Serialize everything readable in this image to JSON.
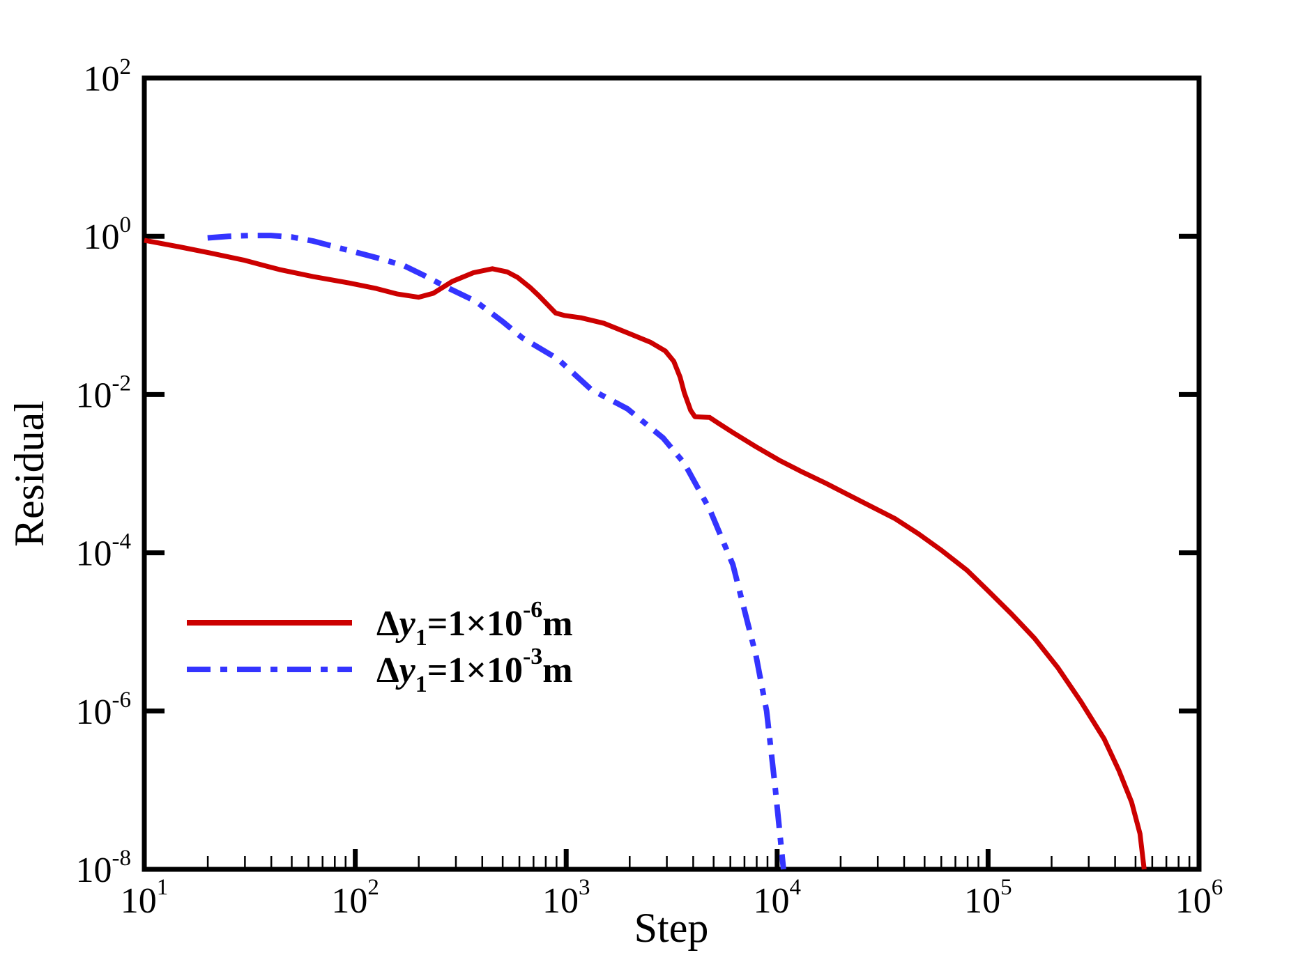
{
  "figure": {
    "background": "#ffffff"
  },
  "chart_data": {
    "type": "line",
    "title": "",
    "xlabel": "Step",
    "ylabel": "Residual",
    "x_scale": "log10",
    "y_scale": "log10",
    "xlim": [
      10,
      1000000
    ],
    "ylim": [
      1e-08,
      100
    ],
    "grid": false,
    "legend_position": "inside-lower-left",
    "x_axis": {
      "tick_base": "10",
      "tick_exponents": [
        "1",
        "2",
        "3",
        "4",
        "5",
        "6"
      ],
      "tick_positions_log": [
        1,
        2,
        3,
        4,
        5,
        6
      ],
      "minor_ticks": "log decades 2-9"
    },
    "y_axis": {
      "tick_base": "10",
      "tick_exponents": [
        "2",
        "0",
        "-2",
        "-4",
        "-6",
        "-8"
      ],
      "tick_positions_log": [
        2,
        0,
        -2,
        -4,
        -6,
        -8
      ]
    },
    "series": [
      {
        "name": "dy1 = 1e-6 m",
        "color": "#cc0000",
        "line_style": "solid",
        "line_width": 7,
        "points_log10_step_residual": [
          [
            1.0,
            -0.05
          ],
          [
            1.16,
            -0.13
          ],
          [
            1.31,
            -0.21
          ],
          [
            1.47,
            -0.3
          ],
          [
            1.64,
            -0.42
          ],
          [
            1.8,
            -0.51
          ],
          [
            1.97,
            -0.59
          ],
          [
            2.1,
            -0.66
          ],
          [
            2.2,
            -0.73
          ],
          [
            2.3,
            -0.77
          ],
          [
            2.37,
            -0.72
          ],
          [
            2.46,
            -0.57
          ],
          [
            2.56,
            -0.46
          ],
          [
            2.65,
            -0.41
          ],
          [
            2.72,
            -0.45
          ],
          [
            2.77,
            -0.52
          ],
          [
            2.83,
            -0.65
          ],
          [
            2.87,
            -0.75
          ],
          [
            2.91,
            -0.86
          ],
          [
            2.95,
            -0.97
          ],
          [
            2.99,
            -1.0
          ],
          [
            3.07,
            -1.03
          ],
          [
            3.18,
            -1.1
          ],
          [
            3.29,
            -1.22
          ],
          [
            3.4,
            -1.34
          ],
          [
            3.47,
            -1.45
          ],
          [
            3.51,
            -1.58
          ],
          [
            3.54,
            -1.78
          ],
          [
            3.56,
            -1.98
          ],
          [
            3.59,
            -2.2
          ],
          [
            3.61,
            -2.28
          ],
          [
            3.68,
            -2.29
          ],
          [
            3.72,
            -2.36
          ],
          [
            3.79,
            -2.48
          ],
          [
            3.9,
            -2.66
          ],
          [
            4.01,
            -2.83
          ],
          [
            4.12,
            -2.98
          ],
          [
            4.23,
            -3.12
          ],
          [
            4.34,
            -3.27
          ],
          [
            4.45,
            -3.42
          ],
          [
            4.56,
            -3.57
          ],
          [
            4.67,
            -3.76
          ],
          [
            4.78,
            -3.97
          ],
          [
            4.9,
            -4.22
          ],
          [
            5.0,
            -4.48
          ],
          [
            5.11,
            -4.77
          ],
          [
            5.22,
            -5.08
          ],
          [
            5.33,
            -5.45
          ],
          [
            5.44,
            -5.88
          ],
          [
            5.55,
            -6.35
          ],
          [
            5.62,
            -6.75
          ],
          [
            5.68,
            -7.15
          ],
          [
            5.72,
            -7.55
          ],
          [
            5.74,
            -8.0
          ]
        ]
      },
      {
        "name": "dy1 = 1e-3 m",
        "color": "#3434ff",
        "line_style": "dash-dot",
        "line_width": 8,
        "points_log10_step_residual": [
          [
            1.3,
            -0.02
          ],
          [
            1.4,
            0.0
          ],
          [
            1.5,
            0.01
          ],
          [
            1.6,
            0.01
          ],
          [
            1.7,
            -0.01
          ],
          [
            1.8,
            -0.06
          ],
          [
            1.9,
            -0.13
          ],
          [
            2.0,
            -0.2
          ],
          [
            2.1,
            -0.27
          ],
          [
            2.23,
            -0.37
          ],
          [
            2.33,
            -0.5
          ],
          [
            2.43,
            -0.64
          ],
          [
            2.57,
            -0.82
          ],
          [
            2.7,
            -1.08
          ],
          [
            2.79,
            -1.28
          ],
          [
            2.96,
            -1.55
          ],
          [
            3.12,
            -1.94
          ],
          [
            3.29,
            -2.18
          ],
          [
            3.46,
            -2.55
          ],
          [
            3.56,
            -2.87
          ],
          [
            3.68,
            -3.45
          ],
          [
            3.79,
            -4.15
          ],
          [
            3.9,
            -5.3
          ],
          [
            3.95,
            -6.0
          ],
          [
            3.99,
            -6.95
          ],
          [
            4.03,
            -8.0
          ]
        ]
      }
    ]
  },
  "legend": {
    "entries": [
      {
        "delta": "Δ",
        "var": "y",
        "sub": "1",
        "eq": "=1×10",
        "exp": "-6",
        "unit": "m",
        "color": "#cc0000",
        "style": "solid"
      },
      {
        "delta": "Δ",
        "var": "y",
        "sub": "1",
        "eq": "=1×10",
        "exp": "-3",
        "unit": "m",
        "color": "#3434ff",
        "style": "dash-dot"
      }
    ]
  },
  "colors": {
    "axis": "#000000",
    "series_red": "#cc0000",
    "series_blue": "#3434ff"
  }
}
